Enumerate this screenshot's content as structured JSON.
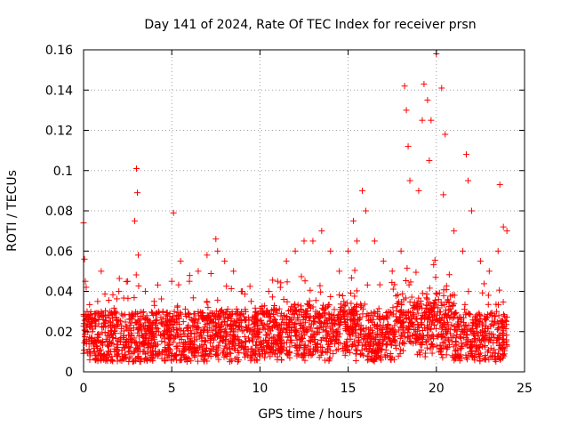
{
  "chart_data": {
    "type": "scatter",
    "title": "Day 141 of 2024, Rate Of TEC Index for receiver prsn",
    "xlabel": "GPS time / hours",
    "ylabel": "ROTI / TECUs",
    "xlim": [
      0,
      25
    ],
    "ylim": [
      0,
      0.16
    ],
    "grid": true,
    "x_ticks": [
      0,
      5,
      10,
      15,
      20,
      25
    ],
    "x_tick_labels": [
      "0",
      "5",
      "10",
      "15",
      "20",
      "25"
    ],
    "y_ticks": [
      0,
      0.02,
      0.04,
      0.06,
      0.08,
      0.1,
      0.12,
      0.14,
      0.16
    ],
    "y_tick_labels": [
      "0",
      "0.02",
      "0.04",
      "0.06",
      "0.08",
      "0.1",
      "0.12",
      "0.14",
      "0.16"
    ],
    "marker": "+",
    "marker_color": "#ff0000",
    "series": [
      {
        "name": "ROTI",
        "x": [
          0.0,
          0.05,
          0.1,
          0.15,
          0.2,
          0.3,
          0.5,
          0.8,
          1.0,
          1.5,
          2.0,
          2.5,
          2.9,
          3.0,
          3.05,
          3.1,
          3.5,
          4.0,
          4.5,
          5.0,
          5.1,
          5.5,
          6.0,
          6.5,
          7.0,
          7.5,
          7.6,
          8.0,
          8.5,
          9.0,
          9.5,
          10.0,
          10.5,
          11.0,
          11.5,
          12.0,
          12.5,
          13.0,
          13.5,
          14.0,
          14.5,
          15.0,
          15.3,
          15.5,
          15.8,
          16.0,
          16.5,
          17.0,
          17.5,
          18.0,
          18.2,
          18.3,
          18.4,
          18.5,
          19.0,
          19.2,
          19.3,
          19.5,
          19.6,
          19.7,
          20.0,
          20.3,
          20.4,
          20.5,
          21.0,
          21.5,
          21.7,
          21.8,
          22.0,
          22.5,
          23.0,
          23.5,
          23.6,
          23.8,
          24.0
        ],
        "y": [
          0.074,
          0.056,
          0.045,
          0.042,
          0.03,
          0.025,
          0.02,
          0.035,
          0.05,
          0.03,
          0.04,
          0.045,
          0.075,
          0.101,
          0.089,
          0.058,
          0.04,
          0.035,
          0.03,
          0.045,
          0.079,
          0.055,
          0.045,
          0.05,
          0.058,
          0.066,
          0.06,
          0.055,
          0.05,
          0.04,
          0.035,
          0.03,
          0.04,
          0.045,
          0.055,
          0.06,
          0.065,
          0.065,
          0.07,
          0.06,
          0.05,
          0.06,
          0.075,
          0.065,
          0.09,
          0.08,
          0.065,
          0.055,
          0.05,
          0.06,
          0.142,
          0.13,
          0.112,
          0.095,
          0.09,
          0.125,
          0.143,
          0.135,
          0.105,
          0.125,
          0.158,
          0.141,
          0.088,
          0.118,
          0.07,
          0.06,
          0.108,
          0.095,
          0.08,
          0.055,
          0.05,
          0.06,
          0.093,
          0.072,
          0.07
        ]
      }
    ],
    "dense_band": {
      "description_free": true,
      "x_range": [
        0,
        24
      ],
      "y_range": [
        0.005,
        0.03
      ]
    }
  }
}
